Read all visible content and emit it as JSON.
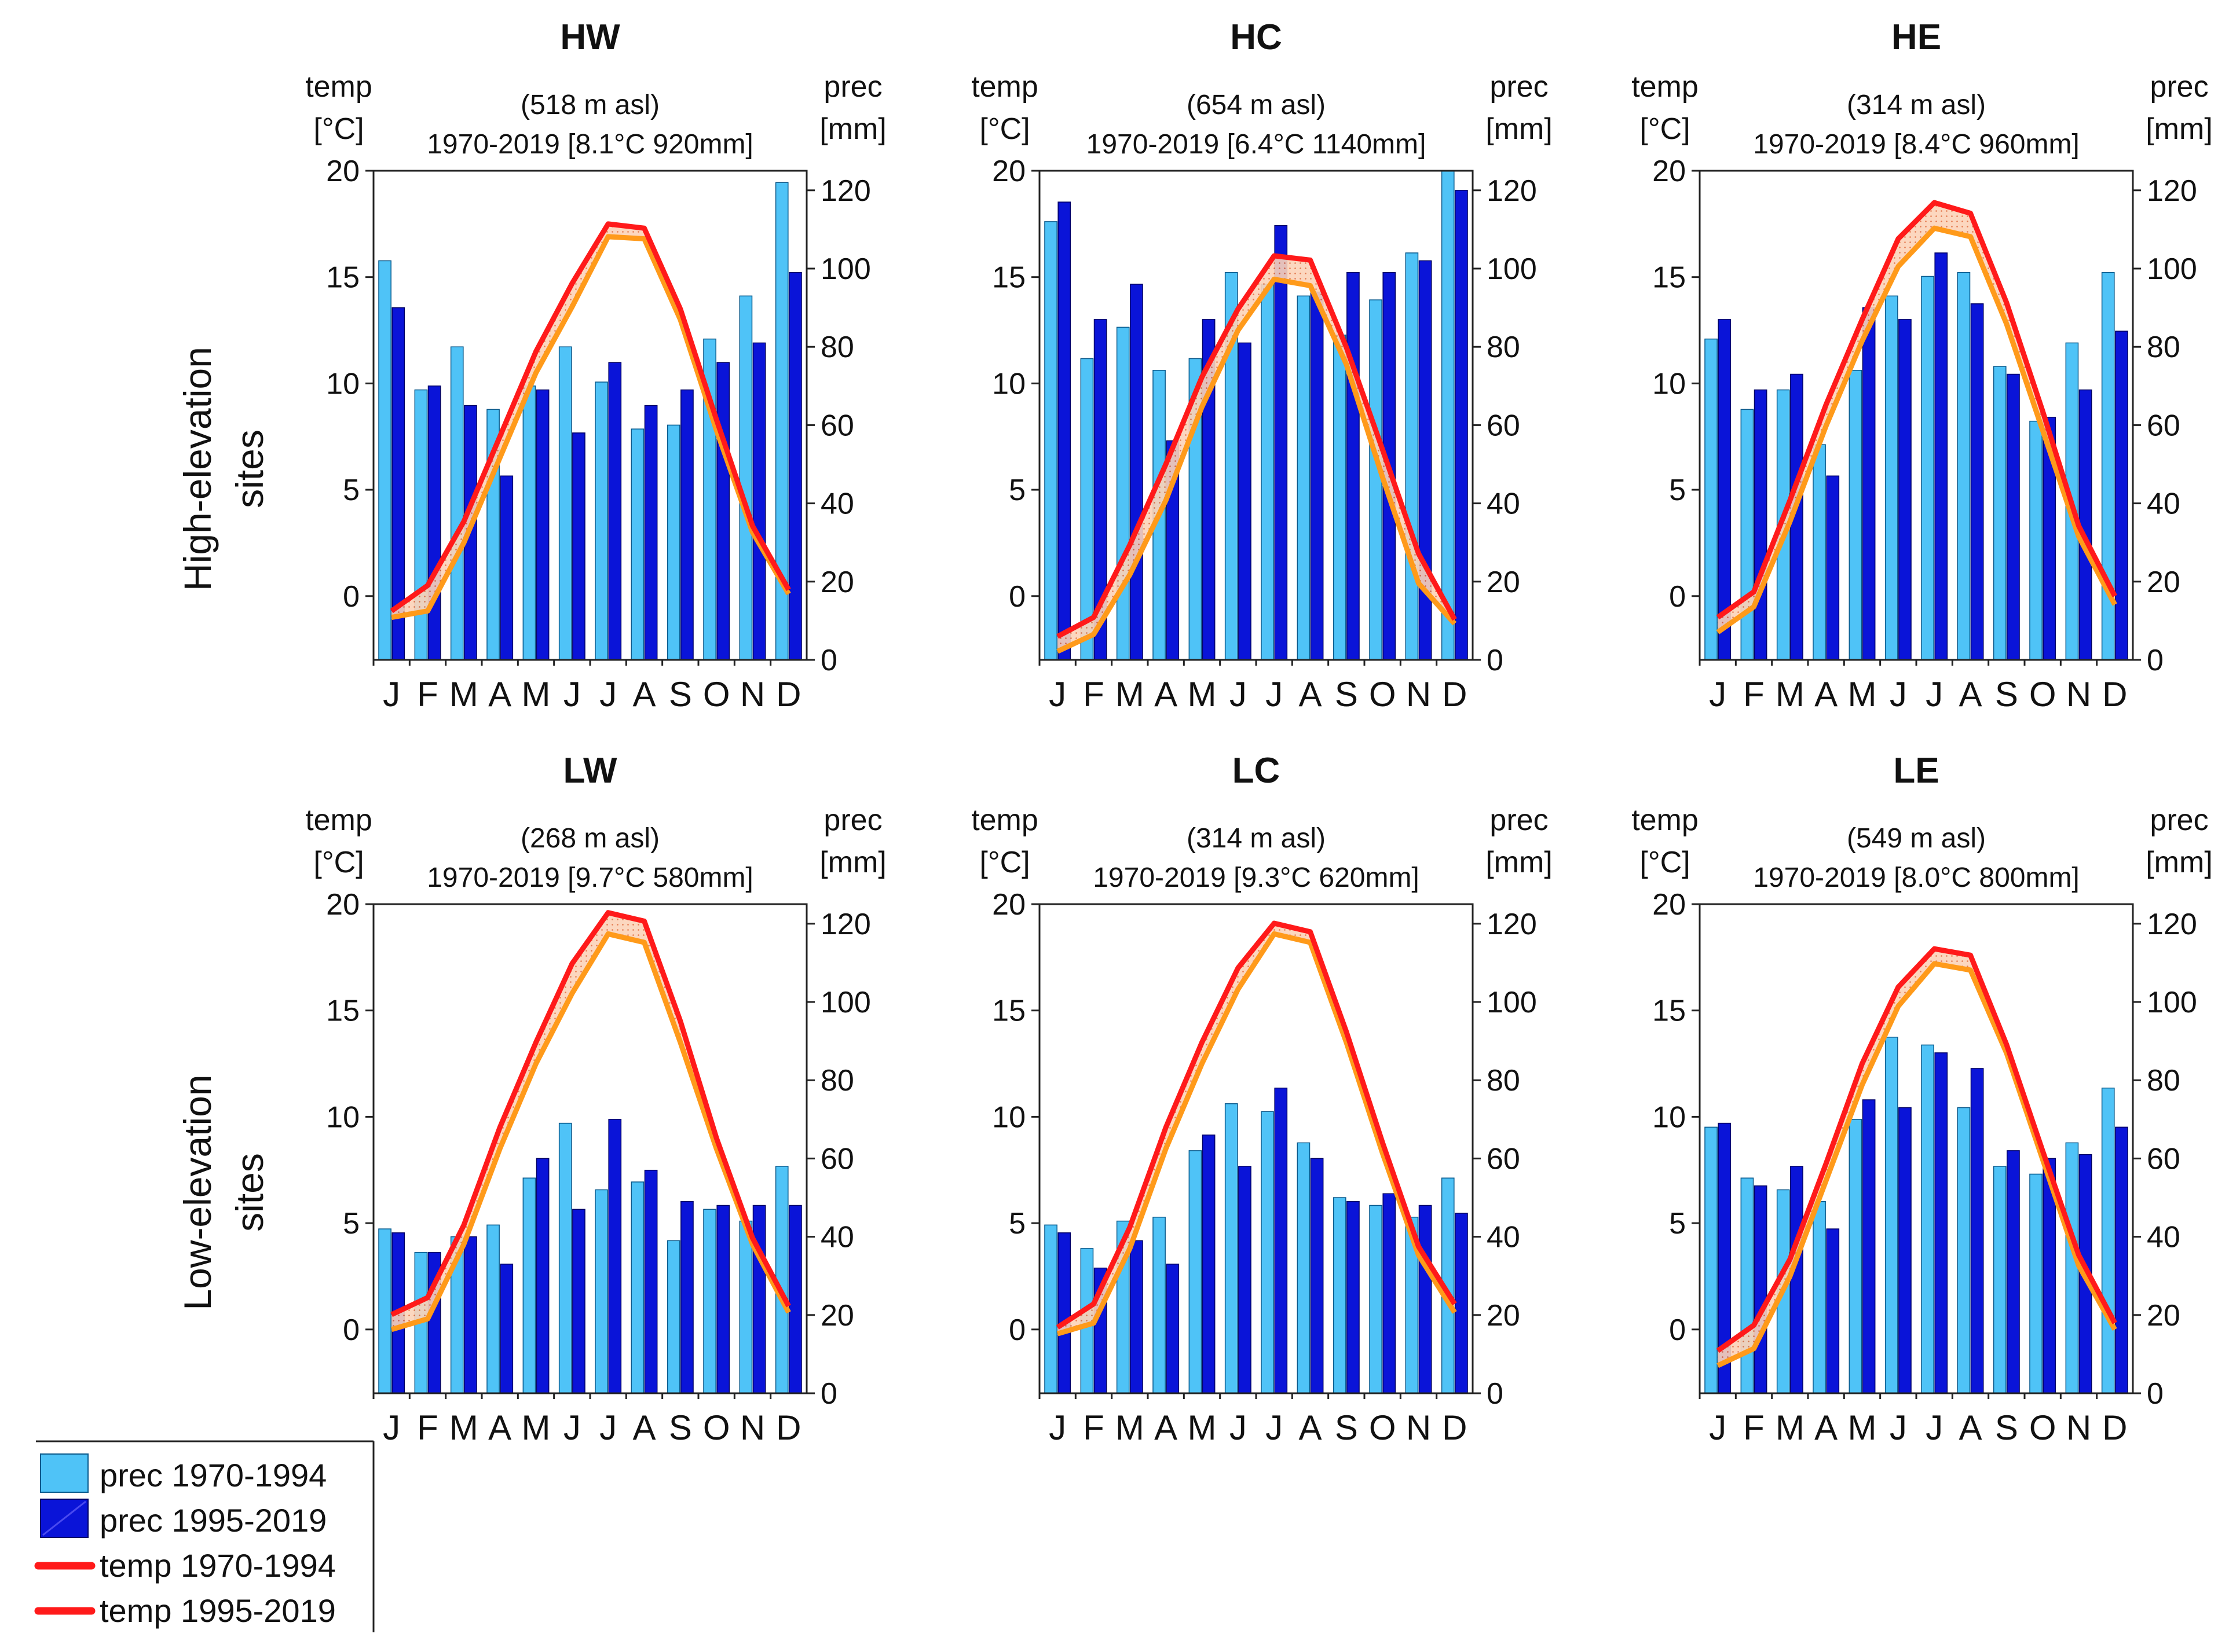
{
  "figure": {
    "row_labels": [
      {
        "line1": "High-elevation",
        "line2": "sites"
      },
      {
        "line1": "Low-elevation",
        "line2": "sites"
      }
    ],
    "legend": [
      {
        "label": "prec  1970-1994",
        "kind": "bar",
        "color": "#4fc3f7"
      },
      {
        "label": "prec  1995-2019",
        "kind": "bar",
        "color": "#0a14d8"
      },
      {
        "label": "temp 1970-1994",
        "kind": "line",
        "color": "#ff1a1a"
      },
      {
        "label": "temp 1995-2019",
        "kind": "line",
        "color": "#ff1a1a"
      }
    ],
    "colors": {
      "prec_early": "#4fc3f7",
      "prec_late": "#0a14d8",
      "temp_late": "#ff1a1a",
      "temp_early": "#ff9a1a",
      "temp_band": "#fcd3b8"
    }
  },
  "chart_data": [
    {
      "type": "bar",
      "title": "HW",
      "elevation": "(518 m asl)",
      "summary": "1970-2019 [8.1°C 920mm]",
      "ylabel_left": [
        "temp",
        "[°C]"
      ],
      "ylabel_right": [
        "prec",
        "[mm]"
      ],
      "categories": [
        "J",
        "F",
        "M",
        "A",
        "M",
        "J",
        "J",
        "A",
        "S",
        "O",
        "N",
        "D"
      ],
      "ylim_left": [
        -3,
        20
      ],
      "ylim_right": [
        0,
        125
      ],
      "ticks_left": [
        0,
        5,
        10,
        15,
        20
      ],
      "ticks_right": [
        0,
        20,
        40,
        60,
        80,
        100,
        120
      ],
      "series": [
        {
          "name": "prec 1970-1994",
          "axis": "right",
          "values": [
            102,
            69,
            80,
            64,
            70,
            80,
            71,
            59,
            60,
            82,
            93,
            122
          ]
        },
        {
          "name": "prec 1995-2019",
          "axis": "right",
          "values": [
            90,
            70,
            65,
            47,
            69,
            58,
            76,
            65,
            69,
            76,
            81,
            99
          ]
        },
        {
          "name": "temp 1970-1994",
          "axis": "left",
          "values": [
            -1.0,
            -0.7,
            2.5,
            6.5,
            10.5,
            13.6,
            16.9,
            16.8,
            13.0,
            7.8,
            3.0,
            0.1
          ]
        },
        {
          "name": "temp 1995-2019",
          "axis": "left",
          "values": [
            -0.7,
            0.5,
            3.5,
            7.5,
            11.5,
            14.7,
            17.5,
            17.3,
            13.5,
            8.3,
            3.3,
            0.3
          ]
        }
      ]
    },
    {
      "type": "bar",
      "title": "HC",
      "elevation": "(654 m asl)",
      "summary": "1970-2019 [6.4°C 1140mm]",
      "ylabel_left": [
        "temp",
        "[°C]"
      ],
      "ylabel_right": [
        "prec",
        "[mm]"
      ],
      "categories": [
        "J",
        "F",
        "M",
        "A",
        "M",
        "J",
        "J",
        "A",
        "S",
        "O",
        "N",
        "D"
      ],
      "ylim_left": [
        -3,
        20
      ],
      "ylim_right": [
        0,
        125
      ],
      "ticks_left": [
        0,
        5,
        10,
        15,
        20
      ],
      "ticks_right": [
        0,
        20,
        40,
        60,
        80,
        100,
        120
      ],
      "series": [
        {
          "name": "prec 1970-1994",
          "axis": "right",
          "values": [
            112,
            77,
            85,
            74,
            77,
            99,
            96,
            93,
            83,
            92,
            104,
            125
          ]
        },
        {
          "name": "prec 1995-2019",
          "axis": "right",
          "values": [
            117,
            87,
            96,
            56,
            87,
            81,
            111,
            94,
            99,
            99,
            102,
            120
          ]
        },
        {
          "name": "temp 1970-1994",
          "axis": "left",
          "values": [
            -2.6,
            -1.8,
            1.0,
            4.5,
            8.9,
            12.5,
            14.9,
            14.6,
            10.9,
            5.6,
            0.6,
            -1.3
          ]
        },
        {
          "name": "temp 1995-2019",
          "axis": "left",
          "values": [
            -1.9,
            -1.0,
            2.4,
            6.2,
            10.3,
            13.5,
            16.0,
            15.8,
            11.7,
            6.9,
            2.0,
            -1.1
          ]
        }
      ]
    },
    {
      "type": "bar",
      "title": "HE",
      "elevation": "(314 m asl)",
      "summary": "1970-2019 [8.4°C 960mm]",
      "ylabel_left": [
        "temp",
        "[°C]"
      ],
      "ylabel_right": [
        "prec",
        "[mm]"
      ],
      "categories": [
        "J",
        "F",
        "M",
        "A",
        "M",
        "J",
        "J",
        "A",
        "S",
        "O",
        "N",
        "D"
      ],
      "ylim_left": [
        -3,
        20
      ],
      "ylim_right": [
        0,
        125
      ],
      "ticks_left": [
        0,
        5,
        10,
        15,
        20
      ],
      "ticks_right": [
        0,
        20,
        40,
        60,
        80,
        100,
        120
      ],
      "series": [
        {
          "name": "prec 1970-1994",
          "axis": "right",
          "values": [
            82,
            64,
            69,
            55,
            74,
            93,
            98,
            99,
            75,
            61,
            81,
            99
          ]
        },
        {
          "name": "prec 1995-2019",
          "axis": "right",
          "values": [
            87,
            69,
            73,
            47,
            90,
            87,
            104,
            91,
            73,
            62,
            69,
            84
          ]
        },
        {
          "name": "temp 1970-1994",
          "axis": "left",
          "values": [
            -1.7,
            -0.5,
            3.5,
            8.0,
            12.0,
            15.5,
            17.3,
            16.9,
            12.8,
            7.8,
            2.8,
            -0.4
          ]
        },
        {
          "name": "temp 1995-2019",
          "axis": "left",
          "values": [
            -1.0,
            0.2,
            4.5,
            9.0,
            13.0,
            16.8,
            18.5,
            18.0,
            13.8,
            8.7,
            3.3,
            0.0
          ]
        }
      ]
    },
    {
      "type": "bar",
      "title": "LW",
      "elevation": "(268 m asl)",
      "summary": "1970-2019 [9.7°C 580mm]",
      "ylabel_left": [
        "temp",
        "[°C]"
      ],
      "ylabel_right": [
        "prec",
        "[mm]"
      ],
      "categories": [
        "J",
        "F",
        "M",
        "A",
        "M",
        "J",
        "J",
        "A",
        "S",
        "O",
        "N",
        "D"
      ],
      "ylim_left": [
        -3,
        20
      ],
      "ylim_right": [
        0,
        125
      ],
      "ticks_left": [
        0,
        5,
        10,
        15,
        20
      ],
      "ticks_right": [
        0,
        20,
        40,
        60,
        80,
        100,
        120
      ],
      "series": [
        {
          "name": "prec 1970-1994",
          "axis": "right",
          "values": [
            42,
            36,
            40,
            43,
            55,
            69,
            52,
            54,
            39,
            47,
            44,
            58
          ]
        },
        {
          "name": "prec 1995-2019",
          "axis": "right",
          "values": [
            41,
            36,
            40,
            33,
            60,
            47,
            70,
            57,
            49,
            48,
            48,
            48
          ]
        },
        {
          "name": "temp 1970-1994",
          "axis": "left",
          "values": [
            0.0,
            0.5,
            4.0,
            8.5,
            12.5,
            15.8,
            18.6,
            18.2,
            13.5,
            8.5,
            4.0,
            0.8
          ]
        },
        {
          "name": "temp 1995-2019",
          "axis": "left",
          "values": [
            0.7,
            1.5,
            4.9,
            9.5,
            13.5,
            17.2,
            19.6,
            19.2,
            14.5,
            9.0,
            4.3,
            1.1
          ]
        }
      ]
    },
    {
      "type": "bar",
      "title": "LC",
      "elevation": "(314 m asl)",
      "summary": "1970-2019 [9.3°C 620mm]",
      "ylabel_left": [
        "temp",
        "[°C]"
      ],
      "ylabel_right": [
        "prec",
        "[mm]"
      ],
      "categories": [
        "J",
        "F",
        "M",
        "A",
        "M",
        "J",
        "J",
        "A",
        "S",
        "O",
        "N",
        "D"
      ],
      "ylim_left": [
        -3,
        20
      ],
      "ylim_right": [
        0,
        125
      ],
      "ticks_left": [
        0,
        5,
        10,
        15,
        20
      ],
      "ticks_right": [
        0,
        20,
        40,
        60,
        80,
        100,
        120
      ],
      "series": [
        {
          "name": "prec 1970-1994",
          "axis": "right",
          "values": [
            43,
            37,
            44,
            45,
            62,
            74,
            72,
            64,
            50,
            48,
            45,
            55
          ]
        },
        {
          "name": "prec 1995-2019",
          "axis": "right",
          "values": [
            41,
            32,
            39,
            33,
            66,
            58,
            78,
            60,
            49,
            51,
            48,
            46
          ]
        },
        {
          "name": "temp 1970-1994",
          "axis": "left",
          "values": [
            -0.2,
            0.3,
            3.8,
            8.5,
            12.5,
            16.0,
            18.6,
            18.2,
            13.5,
            8.3,
            3.5,
            0.8
          ]
        },
        {
          "name": "temp 1995-2019",
          "axis": "left",
          "values": [
            0.1,
            1.2,
            4.8,
            9.5,
            13.5,
            17.0,
            19.1,
            18.7,
            14.0,
            8.8,
            3.9,
            1.2
          ]
        }
      ]
    },
    {
      "type": "bar",
      "title": "LE",
      "elevation": "(549 m asl)",
      "summary": "1970-2019 [8.0°C 800mm]",
      "ylabel_left": [
        "temp",
        "[°C]"
      ],
      "ylabel_right": [
        "prec",
        "[mm]"
      ],
      "categories": [
        "J",
        "F",
        "M",
        "A",
        "M",
        "J",
        "J",
        "A",
        "S",
        "O",
        "N",
        "D"
      ],
      "ylim_left": [
        -3,
        20
      ],
      "ylim_right": [
        0,
        125
      ],
      "ticks_left": [
        0,
        5,
        10,
        15,
        20
      ],
      "ticks_right": [
        0,
        20,
        40,
        60,
        80,
        100,
        120
      ],
      "series": [
        {
          "name": "prec 1970-1994",
          "axis": "right",
          "values": [
            68,
            55,
            52,
            49,
            70,
            91,
            89,
            73,
            58,
            56,
            64,
            78
          ]
        },
        {
          "name": "prec 1995-2019",
          "axis": "right",
          "values": [
            69,
            53,
            58,
            42,
            75,
            73,
            87,
            83,
            62,
            60,
            61,
            68
          ]
        },
        {
          "name": "temp 1970-1994",
          "axis": "left",
          "values": [
            -1.7,
            -0.9,
            2.5,
            7.0,
            11.5,
            15.2,
            17.2,
            16.9,
            13.0,
            8.0,
            3.0,
            0.0
          ]
        },
        {
          "name": "temp 1995-2019",
          "axis": "left",
          "values": [
            -1.0,
            0.2,
            3.3,
            7.8,
            12.5,
            16.1,
            17.9,
            17.6,
            13.4,
            8.4,
            3.5,
            0.3
          ]
        }
      ]
    }
  ]
}
